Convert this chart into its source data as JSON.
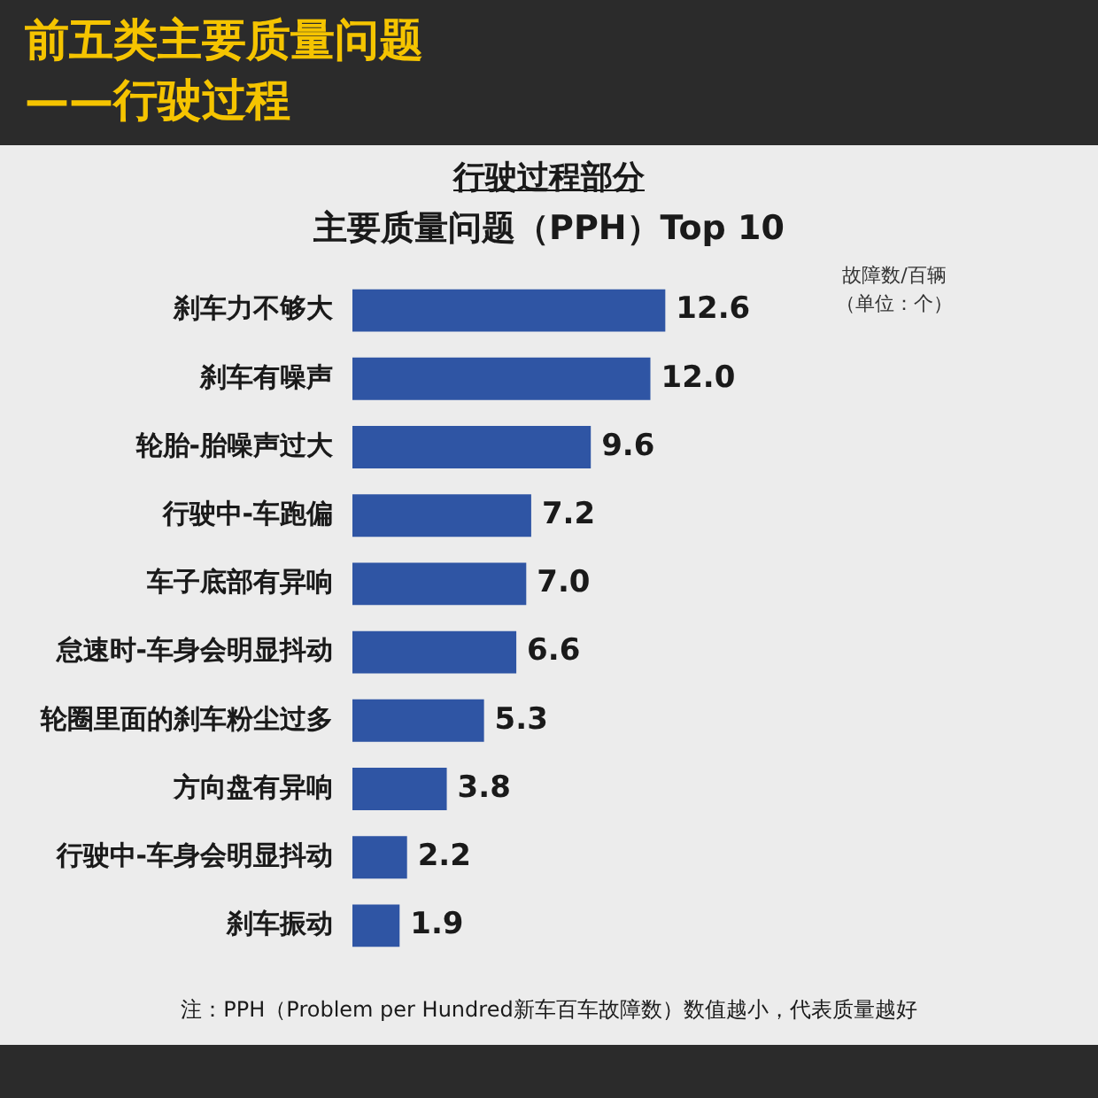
{
  "chart_data": {
    "type": "bar",
    "orientation": "horizontal",
    "title": "前五类主要质量问题——行驶过程",
    "subtitle": "行驶过程部分",
    "xlabel": "主要质量问题（PPH）Top 10",
    "categories": [
      "刹车力不够大",
      "刹车有噪声",
      "轮胎-胎噪声过大",
      "行驶中-车跑偏",
      "车子底部有异响",
      "怠速时-车身会明显抖动",
      "轮圈里面的刹车粉尘过多",
      "方向盘有异响",
      "行驶中-车身会明显抖动",
      "刹车振动"
    ],
    "values": [
      12.6,
      12.0,
      9.6,
      7.2,
      7.0,
      6.6,
      5.3,
      3.8,
      2.2,
      1.9
    ],
    "value_labels": [
      "12.6",
      "12.0",
      "9.6",
      "7.2",
      "7.0",
      "6.6",
      "5.3",
      "3.8",
      "2.2",
      "1.9"
    ],
    "color": "#2f55a4",
    "grid": false,
    "legend": false,
    "annotations": [
      "故障数/百辆",
      "（单位：个）",
      "注：PPH（Problem per Hundred新车百车故障数）数值越小，代表质量越好"
    ]
  }
}
